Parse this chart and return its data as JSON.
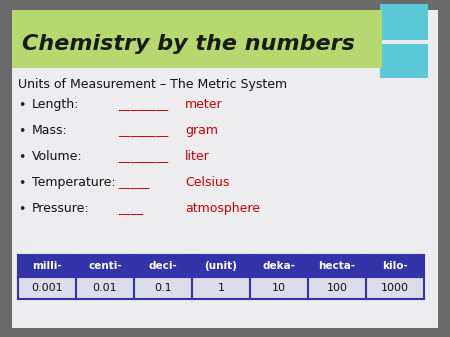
{
  "title": "Chemistry by the numbers",
  "title_bg_color": "#b5d96e",
  "slide_bg_color": "#ededef",
  "outer_bg_color": "#6a6a6a",
  "subtitle": "Units of Measurement – The Metric System",
  "bullet_items": [
    {
      "label": "Length:",
      "blank": "________",
      "answer": "meter"
    },
    {
      "label": "Mass:",
      "blank": "________",
      "answer": "gram"
    },
    {
      "label": "Volume:",
      "blank": "________",
      "answer": "liter"
    },
    {
      "label": "Temperature:",
      "blank": "_____",
      "answer": "Celsius"
    },
    {
      "label": "Pressure:",
      "blank": "____",
      "answer": "atmosphere"
    }
  ],
  "answer_color": "#cc0000",
  "blank_color": "#cc0000",
  "table_headers": [
    "milli-",
    "centi-",
    "deci-",
    "(unit)",
    "deka-",
    "hecta-",
    "kilo-"
  ],
  "table_values": [
    "0.001",
    "0.01",
    "0.1",
    "1",
    "10",
    "100",
    "1000"
  ],
  "table_header_bg": "#3333aa",
  "table_header_fg": "#ffffff",
  "table_value_bg": "#dcdcec",
  "table_value_fg": "#111111",
  "table_border_color": "#3333aa",
  "cyan_color": "#5bc8d8"
}
